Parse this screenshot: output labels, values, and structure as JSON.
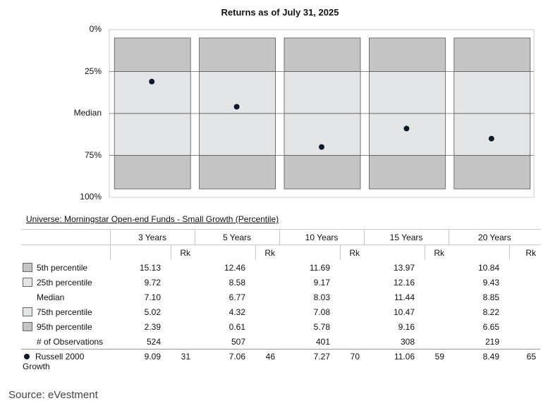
{
  "chart_data": {
    "type": "floating-bar",
    "title": "Returns as of July 31, 2025",
    "y_axis": {
      "labels": [
        "0%",
        "25%",
        "Median",
        "75%",
        "100%"
      ],
      "inverted": true,
      "range": [
        0,
        100
      ]
    },
    "categories": [
      "3 Years",
      "5 Years",
      "10 Years",
      "15 Years",
      "20 Years"
    ],
    "bands": [
      {
        "name": "5th-25th",
        "color": "#c4c4c4"
      },
      {
        "name": "25th-Median",
        "color": "#e3e5e6"
      },
      {
        "name": "Median-75th",
        "color": "#e3e5e6"
      },
      {
        "name": "75th-95th",
        "color": "#c4c4c4"
      }
    ],
    "series": [
      {
        "name": "Russell 2000 Growth",
        "marker": "dot",
        "color": "#0d1b2a",
        "ranks": [
          31,
          46,
          70,
          59,
          65
        ]
      }
    ],
    "universe": "Universe: Morningstar Open-end Funds - Small Growth (Percentile)",
    "table": {
      "column_headers": [
        "3 Years",
        "5 Years",
        "10 Years",
        "15 Years",
        "20 Years"
      ],
      "rank_header": "Rk",
      "rows": [
        {
          "label": "5th percentile",
          "swatch": "dark",
          "values": [
            "15.13",
            "12.46",
            "11.69",
            "13.97",
            "10.84"
          ],
          "ranks": [
            "",
            "",
            "",
            "",
            ""
          ]
        },
        {
          "label": "25th percentile",
          "swatch": "light",
          "values": [
            "9.72",
            "8.58",
            "9.17",
            "12.16",
            "9.43"
          ],
          "ranks": [
            "",
            "",
            "",
            "",
            ""
          ]
        },
        {
          "label": "Median",
          "swatch": "none",
          "values": [
            "7.10",
            "6.77",
            "8.03",
            "11.44",
            "8.85"
          ],
          "ranks": [
            "",
            "",
            "",
            "",
            ""
          ]
        },
        {
          "label": "75th percentile",
          "swatch": "light",
          "values": [
            "5.02",
            "4.32",
            "7.08",
            "10.47",
            "8.22"
          ],
          "ranks": [
            "",
            "",
            "",
            "",
            ""
          ]
        },
        {
          "label": "95th percentile",
          "swatch": "dark",
          "values": [
            "2.39",
            "0.61",
            "5.78",
            "9.16",
            "6.65"
          ],
          "ranks": [
            "",
            "",
            "",
            "",
            ""
          ]
        },
        {
          "label": "# of Observations",
          "swatch": "none",
          "values": [
            "524",
            "507",
            "401",
            "308",
            "219"
          ],
          "ranks": [
            "",
            "",
            "",
            "",
            ""
          ]
        }
      ],
      "benchmark": {
        "label_line1": "Russell 2000",
        "label_line2": "Growth",
        "values": [
          "9.09",
          "7.06",
          "7.27",
          "11.06",
          "8.49"
        ],
        "ranks": [
          "31",
          "46",
          "70",
          "59",
          "65"
        ]
      }
    }
  },
  "footer": {
    "source": "Source: eVestment"
  }
}
